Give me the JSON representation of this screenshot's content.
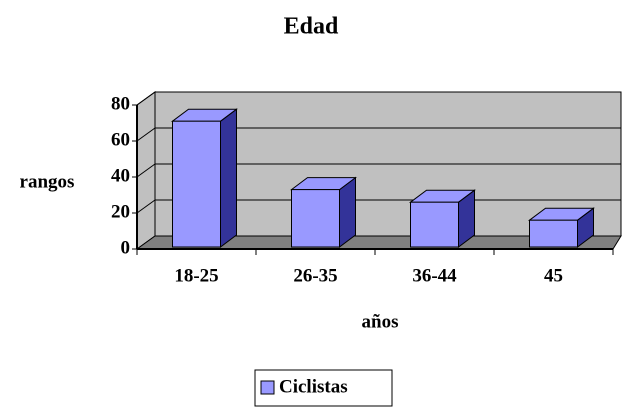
{
  "chart_data": {
    "type": "bar",
    "title": "Edad",
    "x_label": "años",
    "y_label": "rangos",
    "categories": [
      "18-25",
      "26-35",
      "36-44",
      "45"
    ],
    "series": [
      {
        "name": "Ciclistas",
        "color": "#9999ff",
        "values": [
          71,
          33,
          26,
          16
        ]
      }
    ],
    "ylim": [
      0,
      80
    ],
    "yticks": [
      0,
      20,
      40,
      60,
      80
    ],
    "grid": true,
    "legend": "bottom"
  }
}
